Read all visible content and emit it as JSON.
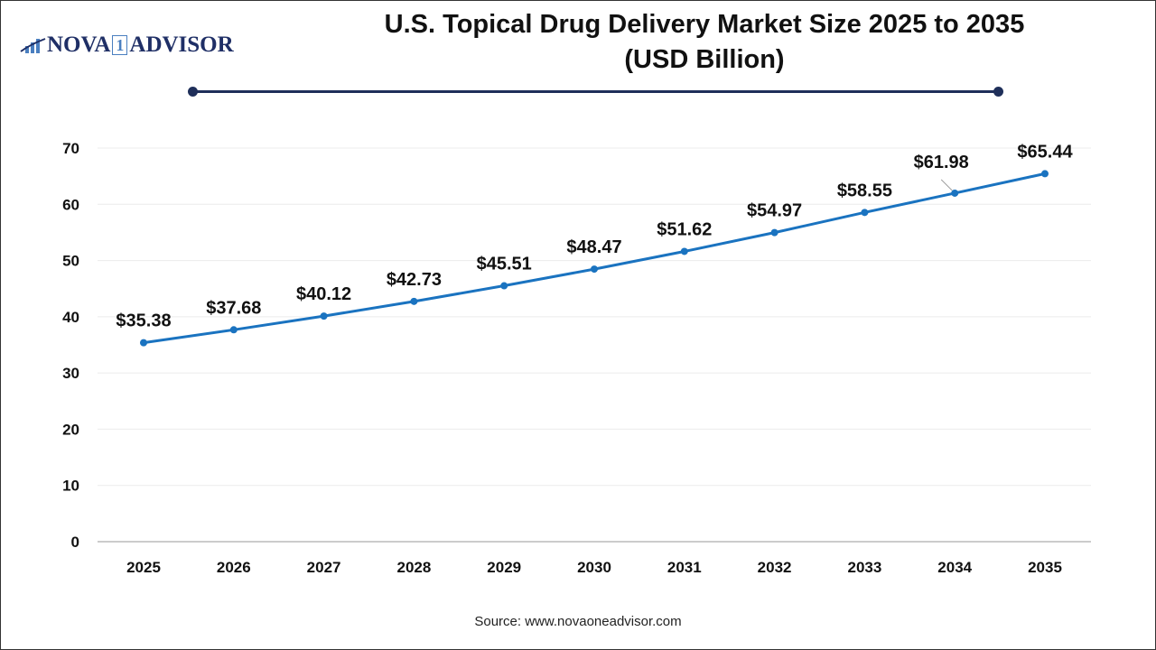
{
  "logo": {
    "text_left": "NOVA",
    "text_one": "1",
    "text_right": "ADVISOR"
  },
  "title": "U.S. Topical Drug Delivery Market Size 2025 to 2035",
  "subtitle": "(USD Billion)",
  "source": "Source: www.novaoneadvisor.com",
  "chart_data": {
    "type": "line",
    "title": "U.S. Topical Drug Delivery Market Size 2025 to 2035 (USD Billion)",
    "x": [
      "2025",
      "2026",
      "2027",
      "2028",
      "2029",
      "2030",
      "2031",
      "2032",
      "2033",
      "2034",
      "2035"
    ],
    "series": [
      {
        "values": [
          35.38,
          37.68,
          40.12,
          42.73,
          45.51,
          48.47,
          51.62,
          54.97,
          58.55,
          61.98,
          65.44
        ]
      }
    ],
    "data_labels": [
      "$35.38",
      "$37.68",
      "$40.12",
      "$42.73",
      "$45.51",
      "$48.47",
      "$51.62",
      "$54.97",
      "$58.55",
      "$61.98",
      "$65.44"
    ],
    "ylim": [
      0,
      70
    ],
    "yticks": [
      0,
      10,
      20,
      30,
      40,
      50,
      60,
      70
    ],
    "grid": true,
    "line_color": "#1a73c0"
  }
}
